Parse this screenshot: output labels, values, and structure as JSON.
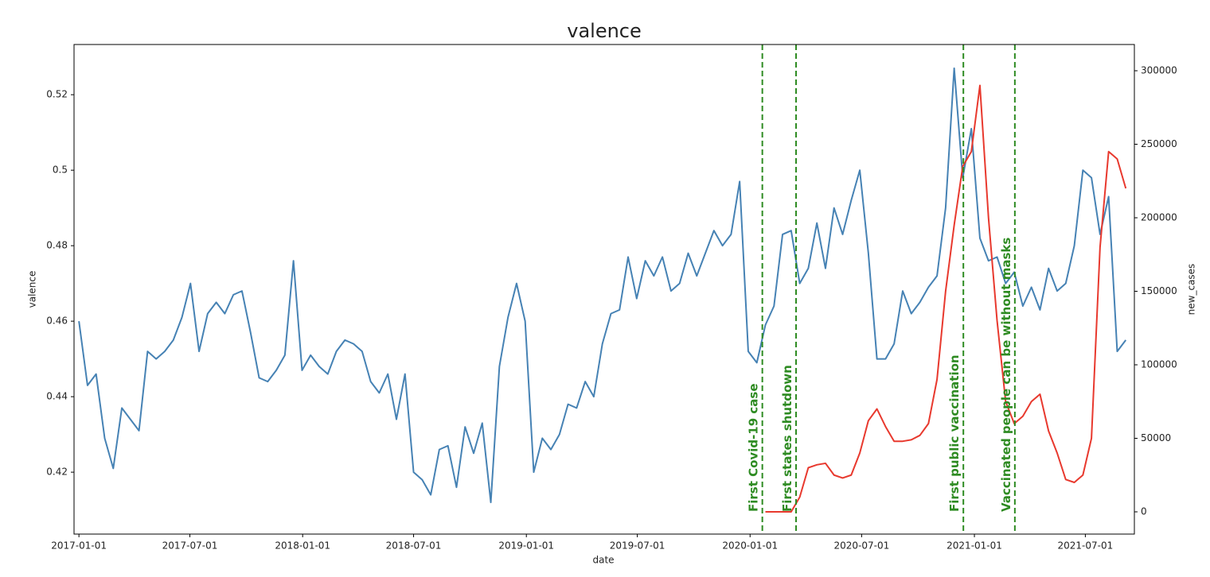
{
  "chart_data": {
    "type": "line",
    "title": "valence",
    "xlabel": "date",
    "ylabel": "valence",
    "y2label": "new_cases",
    "x": [
      "2017-01-01",
      "2017-01-15",
      "2017-01-29",
      "2017-02-12",
      "2017-02-26",
      "2017-03-12",
      "2017-03-26",
      "2017-04-09",
      "2017-04-23",
      "2017-05-07",
      "2017-05-21",
      "2017-06-04",
      "2017-06-18",
      "2017-07-02",
      "2017-07-16",
      "2017-07-30",
      "2017-08-13",
      "2017-08-27",
      "2017-09-10",
      "2017-09-24",
      "2017-10-08",
      "2017-10-22",
      "2017-11-05",
      "2017-11-19",
      "2017-12-03",
      "2017-12-17",
      "2017-12-31",
      "2018-01-14",
      "2018-01-28",
      "2018-02-11",
      "2018-02-25",
      "2018-03-11",
      "2018-03-25",
      "2018-04-08",
      "2018-04-22",
      "2018-05-06",
      "2018-05-20",
      "2018-06-03",
      "2018-06-17",
      "2018-07-01",
      "2018-07-15",
      "2018-07-29",
      "2018-08-12",
      "2018-08-26",
      "2018-09-09",
      "2018-09-23",
      "2018-10-07",
      "2018-10-21",
      "2018-11-04",
      "2018-11-18",
      "2018-12-02",
      "2018-12-16",
      "2018-12-30",
      "2019-01-13",
      "2019-01-27",
      "2019-02-10",
      "2019-02-24",
      "2019-03-10",
      "2019-03-24",
      "2019-04-07",
      "2019-04-21",
      "2019-05-05",
      "2019-05-19",
      "2019-06-02",
      "2019-06-16",
      "2019-06-30",
      "2019-07-14",
      "2019-07-28",
      "2019-08-11",
      "2019-08-25",
      "2019-09-08",
      "2019-09-22",
      "2019-10-06",
      "2019-10-20",
      "2019-11-03",
      "2019-11-17",
      "2019-12-01",
      "2019-12-15",
      "2019-12-29",
      "2020-01-12",
      "2020-01-26",
      "2020-02-09",
      "2020-02-23",
      "2020-03-08",
      "2020-03-22",
      "2020-04-05",
      "2020-04-19",
      "2020-05-03",
      "2020-05-17",
      "2020-05-31",
      "2020-06-14",
      "2020-06-28",
      "2020-07-12",
      "2020-07-26",
      "2020-08-09",
      "2020-08-23",
      "2020-09-06",
      "2020-09-20",
      "2020-10-04",
      "2020-10-18",
      "2020-11-01",
      "2020-11-15",
      "2020-11-29",
      "2020-12-13",
      "2020-12-27",
      "2021-01-10",
      "2021-01-24",
      "2021-02-07",
      "2021-02-21",
      "2021-03-07",
      "2021-03-21",
      "2021-04-04",
      "2021-04-18",
      "2021-05-02",
      "2021-05-16",
      "2021-05-30",
      "2021-06-13",
      "2021-06-27",
      "2021-07-11",
      "2021-07-25",
      "2021-08-08",
      "2021-08-22",
      "2021-09-05"
    ],
    "series": [
      {
        "color": "#4682b4",
        "values": [
          0.46,
          0.443,
          0.446,
          0.429,
          0.421,
          0.437,
          0.434,
          0.431,
          0.452,
          0.45,
          0.452,
          0.455,
          0.461,
          0.47,
          0.452,
          0.462,
          0.465,
          0.462,
          0.467,
          0.468,
          0.457,
          0.445,
          0.444,
          0.447,
          0.451,
          0.476,
          0.447,
          0.451,
          0.448,
          0.446,
          0.452,
          0.455,
          0.454,
          0.452,
          0.444,
          0.441,
          0.446,
          0.434,
          0.446,
          0.42,
          0.418,
          0.414,
          0.426,
          0.427,
          0.416,
          0.432,
          0.425,
          0.433,
          0.412,
          0.448,
          0.461,
          0.47,
          0.46,
          0.42,
          0.429,
          0.426,
          0.43,
          0.438,
          0.437,
          0.444,
          0.44,
          0.454,
          0.462,
          0.463,
          0.477,
          0.466,
          0.476,
          0.472,
          0.477,
          0.468,
          0.47,
          0.478,
          0.472,
          0.478,
          0.484,
          0.48,
          0.483,
          0.497,
          0.452,
          0.449,
          0.459,
          0.464,
          0.483,
          0.484,
          0.47,
          0.474,
          0.486,
          0.474,
          0.49,
          0.483,
          0.492,
          0.5,
          0.478,
          0.45,
          0.45,
          0.454,
          0.468,
          0.462,
          0.465,
          0.469,
          0.472,
          0.49,
          0.527,
          0.498,
          0.511,
          0.482,
          0.476,
          0.477,
          0.47,
          0.473,
          0.464,
          0.469,
          0.463,
          0.474,
          0.468,
          0.47,
          0.48,
          0.5,
          0.498,
          0.483,
          0.493,
          0.452,
          0.455
        ]
      },
      {
        "color": "#e8392e",
        "axis": "y2",
        "values": [
          null,
          null,
          null,
          null,
          null,
          null,
          null,
          null,
          null,
          null,
          null,
          null,
          null,
          null,
          null,
          null,
          null,
          null,
          null,
          null,
          null,
          null,
          null,
          null,
          null,
          null,
          null,
          null,
          null,
          null,
          null,
          null,
          null,
          null,
          null,
          null,
          null,
          null,
          null,
          null,
          null,
          null,
          null,
          null,
          null,
          null,
          null,
          null,
          null,
          null,
          null,
          null,
          null,
          null,
          null,
          null,
          null,
          null,
          null,
          null,
          null,
          null,
          null,
          null,
          null,
          null,
          null,
          null,
          null,
          null,
          null,
          null,
          null,
          null,
          null,
          null,
          null,
          null,
          null,
          null,
          0,
          0,
          0,
          0,
          10000,
          30000,
          32000,
          33000,
          25000,
          23000,
          25000,
          40000,
          62000,
          70000,
          58000,
          48000,
          48000,
          49000,
          52000,
          60000,
          90000,
          150000,
          195000,
          235000,
          245000,
          290000,
          200000,
          130000,
          75000,
          60000,
          65000,
          75000,
          80000,
          55000,
          40000,
          22000,
          20000,
          25000,
          50000,
          180000,
          245000,
          240000,
          220000
        ]
      }
    ],
    "xlim": [
      "2016-12-24",
      "2021-09-19"
    ],
    "xticks": [
      "2017-01-01",
      "2017-07-01",
      "2018-01-01",
      "2018-07-01",
      "2019-01-01",
      "2019-07-01",
      "2020-01-01",
      "2020-07-01",
      "2021-01-01",
      "2021-07-01"
    ],
    "ylim": [
      0.4036,
      0.5333
    ],
    "yticks": [
      0.42,
      0.44,
      0.46,
      0.48,
      0.5,
      0.52
    ],
    "y2lim": [
      -15135,
      317838
    ],
    "y2ticks": [
      0,
      50000,
      100000,
      150000,
      200000,
      250000,
      300000
    ],
    "annotation_color": "#2e8b22",
    "annotations": [
      {
        "x": "2020-01-21",
        "label": "First Covid-19 case"
      },
      {
        "x": "2020-03-16",
        "label": "First states shutdown"
      },
      {
        "x": "2020-12-14",
        "label": "First public vaccination"
      },
      {
        "x": "2021-03-08",
        "label": "Vaccinated people can be without masks"
      }
    ]
  }
}
